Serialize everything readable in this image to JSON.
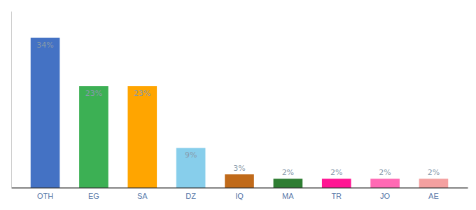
{
  "chart_data": {
    "type": "bar",
    "categories": [
      "OTH",
      "EG",
      "SA",
      "DZ",
      "IQ",
      "MA",
      "TR",
      "JO",
      "AE"
    ],
    "values": [
      34,
      23,
      23,
      9,
      3,
      2,
      2,
      2,
      2
    ],
    "value_labels": [
      "34%",
      "23%",
      "23%",
      "9%",
      "3%",
      "2%",
      "2%",
      "2%",
      "2%"
    ],
    "colors": [
      "#4472C4",
      "#3CB054",
      "#FFA500",
      "#87CEEB",
      "#C06A1A",
      "#2E7D32",
      "#FF1493",
      "#FF69B4",
      "#F4A0A0"
    ],
    "ylim": [
      0,
      40
    ],
    "data_labels": true,
    "tick_labels": "x",
    "grid": false
  }
}
